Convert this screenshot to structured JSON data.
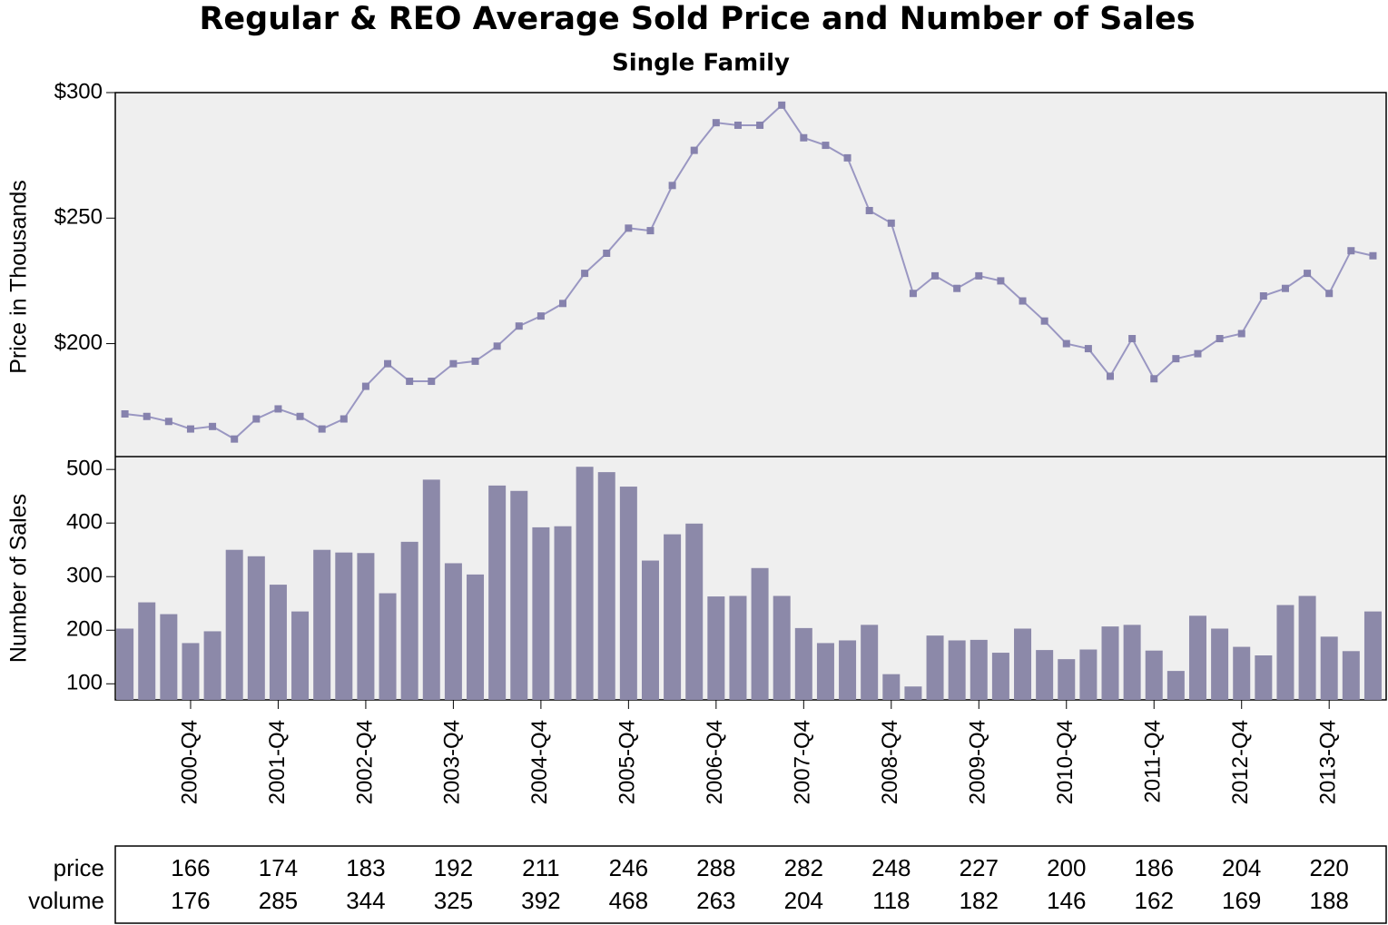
{
  "chart_data": {
    "type": "combo",
    "title": "Regular & REO Average Sold Price and Number of Sales",
    "subtitle": "Single Family",
    "ylabel": "Price in Thousands",
    "y2label": "Number of Sales",
    "categories": [
      null,
      null,
      null,
      "2000-Q4",
      null,
      null,
      null,
      "2001-Q4",
      null,
      null,
      null,
      "2002-Q4",
      null,
      null,
      null,
      "2003-Q4",
      null,
      null,
      null,
      "2004-Q4",
      null,
      null,
      null,
      "2005-Q4",
      null,
      null,
      null,
      "2006-Q4",
      null,
      null,
      null,
      "2007-Q4",
      null,
      null,
      null,
      "2008-Q4",
      null,
      null,
      null,
      "2009-Q4",
      null,
      null,
      null,
      "2010-Q4",
      null,
      null,
      null,
      "2011-Q4",
      null,
      null,
      null,
      "2012-Q4",
      null,
      null,
      null,
      "2013-Q4",
      null,
      null
    ],
    "ylim": [
      155,
      300
    ],
    "yticks": [
      {
        "value": 200,
        "label": "$200"
      },
      {
        "value": 250,
        "label": "$250"
      },
      {
        "value": 300,
        "label": "$300"
      }
    ],
    "y2lim": [
      70,
      524
    ],
    "y2ticks": [
      100,
      200,
      300,
      400,
      500
    ],
    "series": [
      {
        "name": "price",
        "type": "line",
        "color": "#9a97c2",
        "values": [
          172,
          171,
          169,
          166,
          167,
          162,
          170,
          174,
          171,
          166,
          170,
          183,
          192,
          185,
          185,
          192,
          193,
          199,
          207,
          211,
          216,
          228,
          236,
          246,
          245,
          263,
          277,
          288,
          287,
          287,
          295,
          282,
          279,
          274,
          253,
          248,
          220,
          227,
          222,
          227,
          225,
          217,
          209,
          200,
          198,
          187,
          202,
          186,
          194,
          196,
          202,
          204,
          219,
          222,
          228,
          220,
          237,
          235
        ]
      },
      {
        "name": "volume",
        "type": "bar",
        "axis": "y2",
        "color": "#8c89a9",
        "values": [
          203,
          252,
          230,
          176,
          198,
          350,
          338,
          285,
          235,
          350,
          345,
          344,
          269,
          365,
          481,
          325,
          304,
          470,
          460,
          392,
          394,
          505,
          495,
          468,
          330,
          379,
          399,
          263,
          264,
          316,
          264,
          204,
          176,
          181,
          210,
          118,
          95,
          190,
          181,
          182,
          158,
          203,
          163,
          146,
          164,
          207,
          210,
          162,
          124,
          227,
          203,
          169,
          153,
          247,
          264,
          188,
          161,
          235
        ]
      }
    ]
  }
}
